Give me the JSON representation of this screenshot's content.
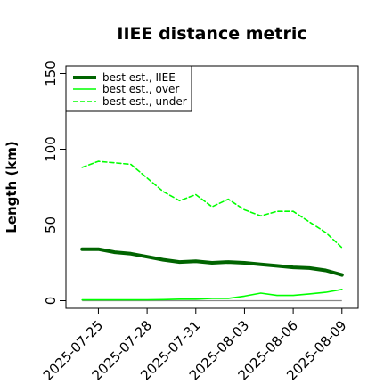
{
  "chart_data": {
    "type": "line",
    "title": "IIEE distance metric",
    "xlabel": "",
    "ylabel": "Length (km)",
    "x": [
      "2025-07-24",
      "2025-07-25",
      "2025-07-26",
      "2025-07-27",
      "2025-07-28",
      "2025-07-29",
      "2025-07-30",
      "2025-07-31",
      "2025-08-01",
      "2025-08-02",
      "2025-08-03",
      "2025-08-04",
      "2025-08-05",
      "2025-08-06",
      "2025-08-07",
      "2025-08-08",
      "2025-08-09"
    ],
    "x_ticks": [
      "2025-07-25",
      "2025-07-28",
      "2025-07-31",
      "2025-08-03",
      "2025-08-06",
      "2025-08-09"
    ],
    "y_ticks": [
      0,
      50,
      100,
      150
    ],
    "xlim": [
      "2025-07-23",
      "2025-08-10"
    ],
    "ylim": [
      -5,
      155
    ],
    "grid": false,
    "legend_position": "top-left",
    "series": [
      {
        "name": "best est., IIEE",
        "color": "#006400",
        "style": "solid",
        "width": "thick",
        "values": [
          34,
          34,
          32,
          31,
          29,
          27,
          25.5,
          26,
          25,
          25.5,
          25,
          24,
          23,
          22,
          21.5,
          20,
          17
        ]
      },
      {
        "name": "best est., over",
        "color": "#00ff00",
        "style": "solid",
        "width": "thin",
        "values": [
          0.5,
          0.5,
          0.5,
          0.5,
          0.5,
          0.7,
          1,
          1,
          1.5,
          1.5,
          3,
          5,
          3.5,
          3.5,
          4.5,
          5.5,
          7.5
        ]
      },
      {
        "name": "best est., under",
        "color": "#00ff00",
        "style": "dashed",
        "width": "thin",
        "values": [
          88,
          92,
          91,
          90,
          81,
          72,
          66,
          70,
          62,
          67,
          60,
          56,
          59,
          59,
          52,
          45,
          35
        ]
      }
    ],
    "zero_line": {
      "value": 0,
      "color": "#888888"
    }
  }
}
